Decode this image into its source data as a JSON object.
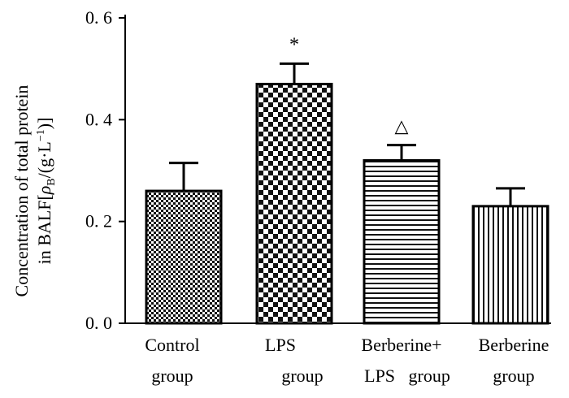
{
  "chart_data": {
    "type": "bar",
    "ylabel_line1": "Concentration of total protein",
    "ylabel_line2_prefix": "in BALF[",
    "ylabel_rho": "ρ",
    "ylabel_sub": "B",
    "ylabel_line2_suffix": "/(g·L",
    "ylabel_sup": "−1",
    "ylabel_close": ")]",
    "ylim": [
      0,
      0.6
    ],
    "yticks": [
      "0. 0",
      "0. 2",
      "0. 4",
      "0. 6"
    ],
    "ytick_values": [
      0,
      0.2,
      0.4,
      0.6
    ],
    "categories": [
      [
        "Control",
        "group"
      ],
      [
        "LPS",
        "group"
      ],
      [
        "Berberine+",
        "LPS   group"
      ],
      [
        "Berberine",
        "group"
      ]
    ],
    "values": [
      0.26,
      0.47,
      0.32,
      0.23
    ],
    "errors": [
      0.055,
      0.04,
      0.03,
      0.035
    ],
    "patterns": [
      "checker-fine",
      "checker-coarse",
      "horizontal-lines",
      "vertical-lines"
    ],
    "annotations": [
      "",
      "*",
      "△",
      ""
    ]
  }
}
